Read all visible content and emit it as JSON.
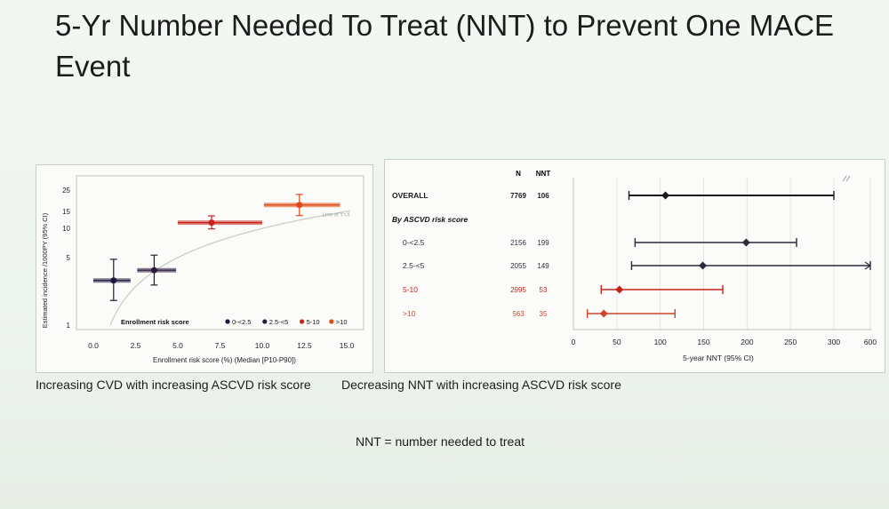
{
  "title": "5-Yr Number Needed To Treat (NNT) to Prevent One MACE Event",
  "captions": {
    "left": "Increasing CVD with increasing ASCVD risk score",
    "right": "Decreasing NNT with increasing ASCVD risk score",
    "footnote": "NNT = number needed to treat"
  },
  "chart_data": [
    {
      "type": "scatter",
      "xlabel": "Enrollment risk score (%) (Median [P10-P90])",
      "ylabel": "Estimated incidence /1000PY (95% CI)",
      "xlim": [
        -1,
        16
      ],
      "ylim": [
        0.9,
        35
      ],
      "y_scale": "log",
      "xticks": [
        "0.0",
        "2.5",
        "5.0",
        "7.5",
        "10.0",
        "12.5",
        "15.0"
      ],
      "xtick_values": [
        0,
        2.5,
        5,
        7.5,
        10,
        12.5,
        15
      ],
      "yticks": [
        "1",
        "5",
        "10",
        "15",
        "25"
      ],
      "ytick_values": [
        1,
        5,
        10,
        15,
        25
      ],
      "reference_line": "Line of Y=X",
      "legend_title": "Enrollment risk score",
      "legend_position": "bottom-right",
      "series": [
        {
          "name": "0-<2.5",
          "color": "#1e1a3c",
          "x": 1.2,
          "y": 2.9,
          "x_low": 0,
          "x_high": 2.2,
          "y_low": 1.8,
          "y_high": 4.8
        },
        {
          "name": "2.5-<5",
          "color": "#2a1a3a",
          "x": 3.6,
          "y": 3.7,
          "x_low": 2.6,
          "x_high": 4.9,
          "y_low": 2.6,
          "y_high": 5.3
        },
        {
          "name": "5-10",
          "color": "#c8211a",
          "x": 7.0,
          "y": 11.5,
          "x_low": 5.0,
          "x_high": 10.0,
          "y_low": 9.9,
          "y_high": 13.5
        },
        {
          "name": ">10",
          "color": "#e04a16",
          "x": 12.2,
          "y": 17.5,
          "x_low": 10.1,
          "x_high": 14.6,
          "y_low": 13.6,
          "y_high": 22.5
        }
      ]
    },
    {
      "type": "forest",
      "header": {
        "n": "N",
        "nnt": "NNT"
      },
      "xlabel": "5-year NNT (95% CI)",
      "xticks": [
        "0",
        "50",
        "100",
        "150",
        "200",
        "250",
        "300",
        "600"
      ],
      "xtick_values": [
        0,
        50,
        100,
        150,
        200,
        250,
        300,
        600
      ],
      "axis_break": true,
      "rows": [
        {
          "label": "OVERALL",
          "n": "7769",
          "nnt_text": "106",
          "nnt": 106,
          "low": 64,
          "high": 300,
          "color": "#1a1a1a",
          "bold": true
        },
        {
          "label": "By ASCVD risk score",
          "section": true
        },
        {
          "label": "0-<2.5",
          "n": "2156",
          "nnt_text": "199",
          "nnt": 199,
          "low": 71,
          "high": 257,
          "color": "#2b2b3a"
        },
        {
          "label": "2.5-<5",
          "n": "2055",
          "nnt_text": "149",
          "nnt": 149,
          "low": 67,
          "high": 600,
          "color": "#2b2b3a",
          "arrow": true
        },
        {
          "label": "5-10",
          "n": "2995",
          "nnt_text": "53",
          "nnt": 53,
          "low": 32,
          "high": 172,
          "color": "#c8211a"
        },
        {
          "label": ">10",
          "n": "563",
          "nnt_text": "35",
          "nnt": 35,
          "low": 16,
          "high": 117,
          "color": "#d0442a"
        }
      ]
    }
  ]
}
